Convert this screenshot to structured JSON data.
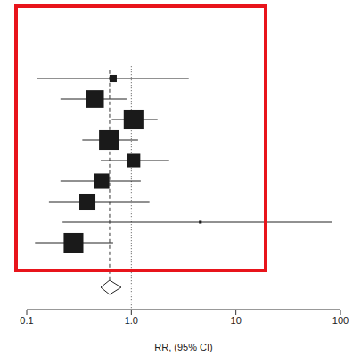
{
  "chart_data": {
    "type": "forest",
    "xlabel": "RR, (95% CI)",
    "log": "x",
    "xlim": [
      0.1,
      100
    ],
    "xticks": [
      0.1,
      {
        "value": 1,
        "label": "1.0"
      },
      10,
      100
    ],
    "tick_labels": "x",
    "null_line": 1,
    "studies": {
      "estimates": [
        0.67,
        0.45,
        1.05,
        0.61,
        1.05,
        0.52,
        0.38,
        4.57,
        0.28
      ],
      "ci_lower": [
        0.126,
        0.21,
        0.65,
        0.34,
        0.51,
        0.21,
        0.163,
        0.22,
        0.12
      ],
      "ci_upper": [
        3.54,
        0.9,
        1.78,
        1.16,
        2.3,
        1.23,
        1.49,
        83,
        0.67
      ],
      "weights": [
        2,
        12,
        15,
        15,
        7,
        9,
        10,
        0.3,
        15
      ]
    },
    "pooled": {
      "estimate": 0.62,
      "ci_lower": 0.51,
      "ci_upper": 0.8
    }
  }
}
